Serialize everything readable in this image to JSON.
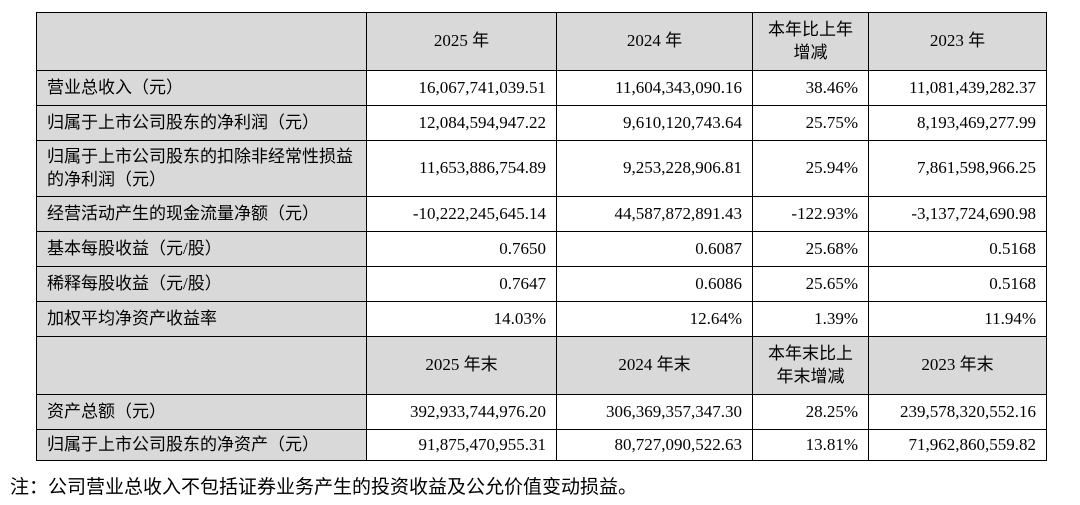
{
  "colors": {
    "header_bg": "#d9d9d9",
    "border": "#000000",
    "text": "#000000",
    "page_bg": "#ffffff"
  },
  "table": {
    "annual": {
      "corner": "",
      "headers": [
        "2025 年",
        "2024 年",
        "本年比上年增减",
        "2023 年"
      ],
      "rows": [
        {
          "label": "营业总收入（元）",
          "values": [
            "16,067,741,039.51",
            "11,604,343,090.16",
            "38.46%",
            "11,081,439,282.37"
          ]
        },
        {
          "label": "归属于上市公司股东的净利润（元）",
          "values": [
            "12,084,594,947.22",
            "9,610,120,743.64",
            "25.75%",
            "8,193,469,277.99"
          ]
        },
        {
          "label": "归属于上市公司股东的扣除非经常性损益的净利润（元）",
          "values": [
            "11,653,886,754.89",
            "9,253,228,906.81",
            "25.94%",
            "7,861,598,966.25"
          ]
        },
        {
          "label": "经营活动产生的现金流量净额（元）",
          "values": [
            "-10,222,245,645.14",
            "44,587,872,891.43",
            "-122.93%",
            "-3,137,724,690.98"
          ]
        },
        {
          "label": "基本每股收益（元/股）",
          "values": [
            "0.7650",
            "0.6087",
            "25.68%",
            "0.5168"
          ]
        },
        {
          "label": "稀释每股收益（元/股）",
          "values": [
            "0.7647",
            "0.6086",
            "25.65%",
            "0.5168"
          ]
        },
        {
          "label": "加权平均净资产收益率",
          "values": [
            "14.03%",
            "12.64%",
            "1.39%",
            "11.94%"
          ]
        }
      ]
    },
    "period_end": {
      "corner": "",
      "headers": [
        "2025 年末",
        "2024 年末",
        "本年末比上年末增减",
        "2023 年末"
      ],
      "rows": [
        {
          "label": "资产总额（元）",
          "values": [
            "392,933,744,976.20",
            "306,369,357,347.30",
            "28.25%",
            "239,578,320,552.16"
          ]
        },
        {
          "label": "归属于上市公司股东的净资产（元）",
          "values": [
            "91,875,470,955.31",
            "80,727,090,522.63",
            "13.81%",
            "71,962,860,559.82"
          ]
        }
      ]
    }
  },
  "footnote": "注：公司营业总收入不包括证券业务产生的投资收益及公允价值变动损益。"
}
